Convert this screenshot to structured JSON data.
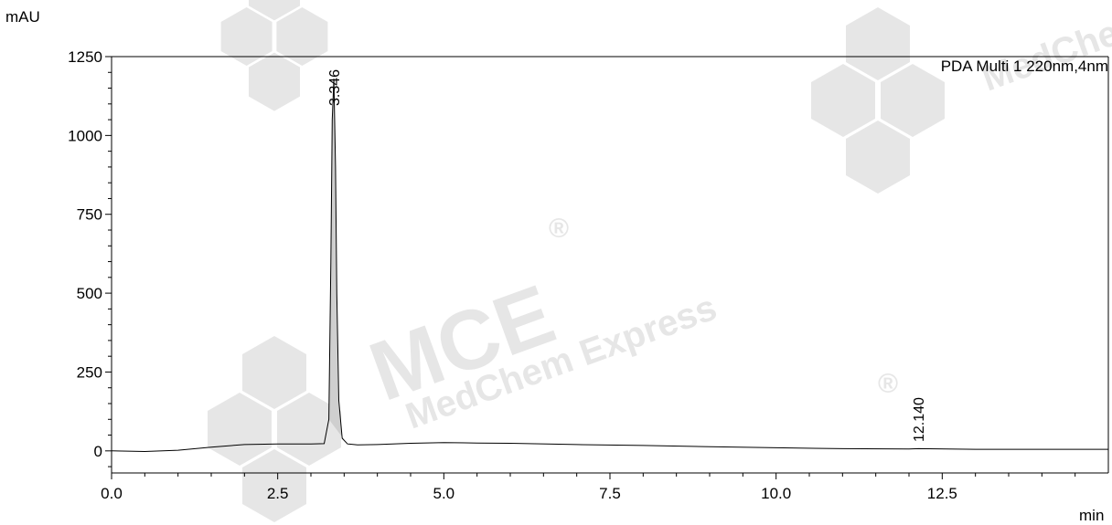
{
  "chart_data": {
    "type": "line",
    "title": "",
    "xlabel": "min",
    "ylabel": "mAU",
    "xlim": [
      0.0,
      15.0
    ],
    "ylim": [
      -70,
      1250
    ],
    "x_ticks": [
      0.0,
      2.5,
      5.0,
      7.5,
      10.0,
      12.5
    ],
    "x_tick_labels": [
      "0.0",
      "2.5",
      "5.0",
      "7.5",
      "10.0",
      "12.5"
    ],
    "y_ticks": [
      0,
      250,
      500,
      750,
      1000,
      1250
    ],
    "y_tick_labels": [
      "0",
      "250",
      "500",
      "750",
      "1000",
      "1250"
    ],
    "legend": "PDA Multi 1 220nm,4nm",
    "legend_position": "top-right",
    "grid": false,
    "series": [
      {
        "name": "PDA Multi 1 220nm,4nm",
        "color": "#000000",
        "x": [
          0.0,
          0.5,
          1.0,
          1.5,
          2.0,
          2.5,
          3.0,
          3.2,
          3.27,
          3.3,
          3.32,
          3.346,
          3.37,
          3.39,
          3.42,
          3.47,
          3.55,
          3.7,
          4.0,
          4.5,
          5.0,
          5.5,
          6.0,
          7.0,
          8.0,
          9.0,
          10.0,
          11.0,
          12.0,
          12.14,
          13.0,
          14.0,
          15.0
        ],
        "y": [
          0,
          -2,
          2,
          12,
          20,
          22,
          22,
          23,
          100,
          600,
          1050,
          1180,
          900,
          500,
          160,
          40,
          22,
          19,
          20,
          24,
          26,
          25,
          24,
          20,
          17,
          13,
          10,
          7,
          6,
          7,
          5,
          5,
          5
        ]
      }
    ],
    "peak_labels": [
      {
        "x": 3.346,
        "text": "3.346"
      },
      {
        "x": 12.14,
        "text": "12.140"
      }
    ]
  },
  "watermark": {
    "brand": "MCE",
    "text": "MedChem Express",
    "registered": "®",
    "color": "#e6e6e6"
  }
}
